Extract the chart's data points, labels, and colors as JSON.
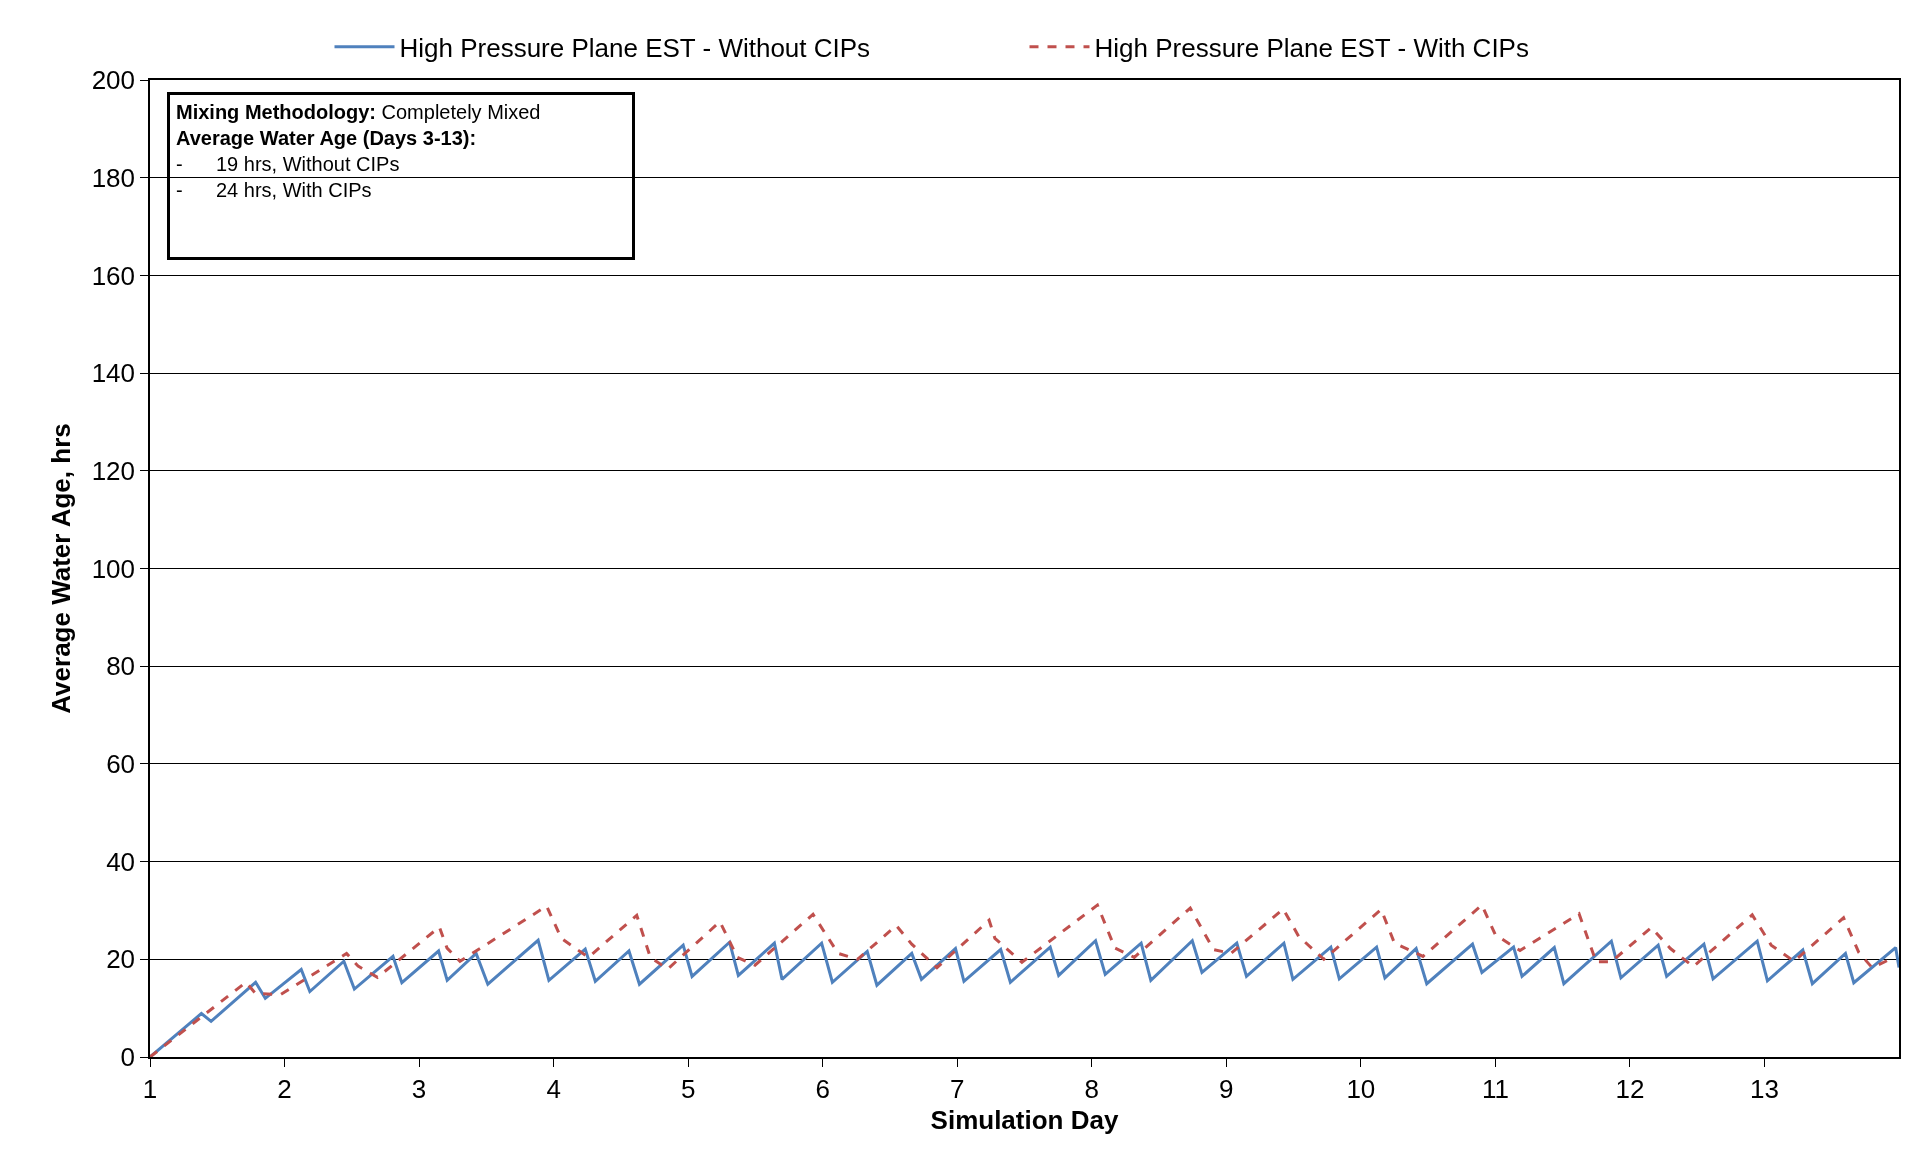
{
  "chart_data": {
    "type": "line",
    "xlabel": "Simulation Day",
    "ylabel": "Average Water Age, hrs",
    "xlim": [
      1,
      14
    ],
    "xticks": [
      1,
      2,
      3,
      4,
      5,
      6,
      7,
      8,
      9,
      10,
      11,
      12,
      13
    ],
    "ylim": [
      0,
      200
    ],
    "yticks": [
      0,
      20,
      40,
      60,
      80,
      100,
      120,
      140,
      160,
      180,
      200
    ],
    "grid": "y",
    "legend": "top",
    "marker": "none",
    "annotations": [
      "**Mixing Methodology:** Completely Mixed\n**Average Water Age (Days 3-13):**\n-      19 hrs, Without CIPs\n-      24 hrs, With CIPs"
    ],
    "series": [
      {
        "name": "High Pressure Plane EST - Without CIPs",
        "color": "#4f81bd",
        "line_style": "solid",
        "x": [
          1.0,
          1.382,
          1.454,
          1.785,
          1.857,
          2.124,
          2.188,
          2.441,
          2.519,
          2.806,
          2.872,
          3.145,
          3.209,
          3.424,
          3.511,
          3.885,
          3.965,
          4.235,
          4.31,
          4.56,
          4.638,
          4.963,
          5.029,
          5.308,
          5.373,
          5.641,
          5.698,
          5.992,
          6.072,
          6.331,
          6.403,
          6.662,
          6.734,
          6.987,
          7.05,
          7.323,
          7.395,
          7.691,
          7.754,
          8.028,
          8.1,
          8.367,
          8.439,
          8.747,
          8.819,
          9.078,
          9.15,
          9.428,
          9.495,
          9.777,
          9.84,
          10.117,
          10.179,
          10.411,
          10.49,
          10.83,
          10.9,
          11.135,
          11.198,
          11.438,
          11.509,
          11.862,
          11.933,
          12.21,
          12.273,
          12.55,
          12.618,
          12.946,
          13.022,
          13.285,
          13.356,
          13.602,
          13.664,
          13.975,
          14.0
        ],
        "values": [
          0,
          8.9,
          7.3,
          15.3,
          12.0,
          17.9,
          13.4,
          19.6,
          13.9,
          20.6,
          15.2,
          21.7,
          15.7,
          21.2,
          14.9,
          23.9,
          15.7,
          22.1,
          15.5,
          21.7,
          14.9,
          22.9,
          16.5,
          23.5,
          16.7,
          23.3,
          15.9,
          23.3,
          15.3,
          21.6,
          14.7,
          21.2,
          15.9,
          22.2,
          15.5,
          22.0,
          15.3,
          22.5,
          16.7,
          23.8,
          16.9,
          23.3,
          15.7,
          23.8,
          17.3,
          23.3,
          16.5,
          23.3,
          15.9,
          22.5,
          16.0,
          22.5,
          16.2,
          22.2,
          15.0,
          23.1,
          17.3,
          22.5,
          16.5,
          22.4,
          15.0,
          23.7,
          16.2,
          22.9,
          16.5,
          23.1,
          16.0,
          23.7,
          15.6,
          21.9,
          15.0,
          21.2,
          15.2,
          22.4,
          18.3
        ]
      },
      {
        "name": "High Pressure Plane EST - With CIPs",
        "color": "#c0504d",
        "line_style": "dashed",
        "x": [
          1.0,
          1.713,
          1.785,
          1.972,
          2.461,
          2.547,
          2.691,
          3.151,
          3.208,
          3.304,
          3.948,
          4.057,
          4.258,
          4.618,
          4.719,
          4.848,
          5.236,
          5.366,
          5.497,
          5.928,
          6.115,
          6.259,
          6.547,
          6.662,
          6.849,
          7.237,
          7.28,
          7.481,
          8.042,
          8.172,
          8.316,
          8.732,
          8.905,
          9.034,
          9.423,
          9.538,
          9.725,
          10.151,
          10.25,
          10.462,
          10.9,
          11.0,
          11.183,
          11.622,
          11.749,
          11.862,
          12.159,
          12.301,
          12.471,
          12.909,
          13.05,
          13.22,
          13.588,
          13.701,
          13.8,
          13.942
        ],
        "values": [
          0,
          15.3,
          13.0,
          12.8,
          21.2,
          18.6,
          16.3,
          26.6,
          22.3,
          19.6,
          30.9,
          24.3,
          20.4,
          29.0,
          20.4,
          18.0,
          27.7,
          20.4,
          18.8,
          29.2,
          21.2,
          20.0,
          26.9,
          23.1,
          18.3,
          28.0,
          24.3,
          19.4,
          31.1,
          22.3,
          20.4,
          30.5,
          22.0,
          21.2,
          30.3,
          24.7,
          20.0,
          30.2,
          23.3,
          20.6,
          31.1,
          25.0,
          21.8,
          29.3,
          19.5,
          19.5,
          26.5,
          22.2,
          18.5,
          29.1,
          22.9,
          19.6,
          28.5,
          21.4,
          18.3,
          20.1
        ]
      }
    ]
  }
}
